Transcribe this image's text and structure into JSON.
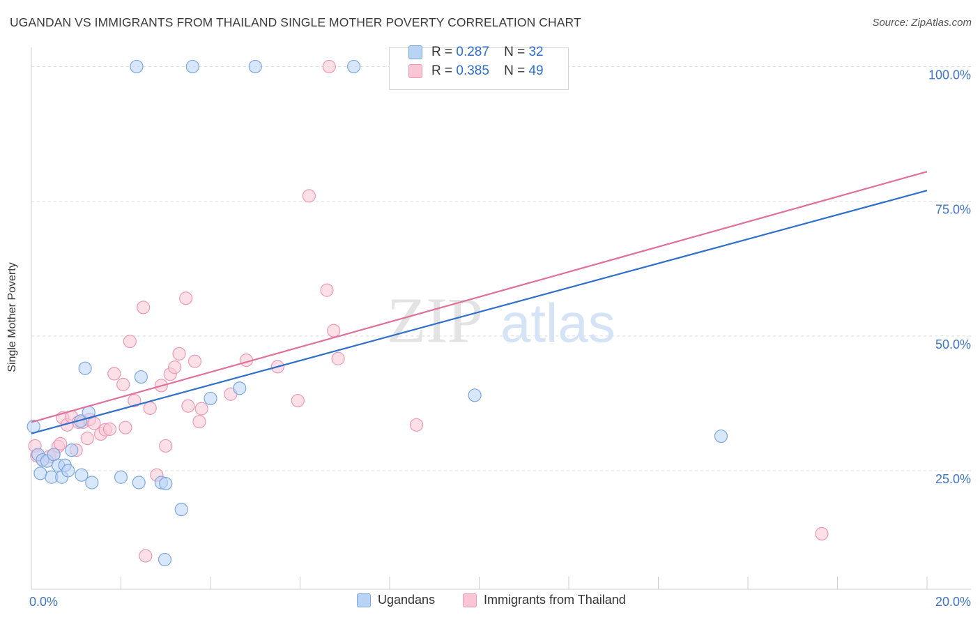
{
  "header": {
    "title": "UGANDAN VS IMMIGRANTS FROM THAILAND SINGLE MOTHER POVERTY CORRELATION CHART",
    "source": "Source: ZipAtlas.com"
  },
  "watermark": {
    "zip": "ZIP",
    "atlas": "atlas"
  },
  "legend_top": {
    "r_label": "R =",
    "n_label": "N =",
    "rows": [
      {
        "r": "0.287",
        "n": "32"
      },
      {
        "r": "0.385",
        "n": "49"
      }
    ]
  },
  "legend_bottom": {
    "items": [
      "Ugandans",
      "Immigrants from Thailand"
    ]
  },
  "colors": {
    "ugandans_fill": "#b9d3f5",
    "ugandans_stroke": "#7aa6e0",
    "ugandans_line": "#2e6fcc",
    "thailand_fill": "#f9c6d6",
    "thailand_stroke": "#ef98b4",
    "thailand_line": "#e0709a",
    "axis_text": "#3d74c6"
  },
  "chart_data": {
    "type": "scatter",
    "title": "UGANDAN VS IMMIGRANTS FROM THAILAND SINGLE MOTHER POVERTY CORRELATION CHART",
    "xlabel": "",
    "ylabel": "Single Mother Poverty",
    "xlim": [
      0,
      20
    ],
    "ylim": [
      3,
      102
    ],
    "x_tick_labels": [
      "0.0%",
      "20.0%"
    ],
    "y_ticks": [
      25,
      50,
      75,
      100
    ],
    "y_tick_labels": [
      "25.0%",
      "50.0%",
      "75.0%",
      "100.0%"
    ],
    "grid": true,
    "legend_position": "top-center",
    "series": [
      {
        "name": "Ugandans",
        "r": 0.287,
        "n": 32,
        "trend": {
          "x": [
            0,
            20
          ],
          "y": [
            31.9,
            77.0
          ]
        },
        "points": [
          [
            0.05,
            33.2
          ],
          [
            0.15,
            28.0
          ],
          [
            0.2,
            24.5
          ],
          [
            0.25,
            27.0
          ],
          [
            0.35,
            26.8
          ],
          [
            0.45,
            23.8
          ],
          [
            0.5,
            28.0
          ],
          [
            0.6,
            26.0
          ],
          [
            0.68,
            23.8
          ],
          [
            0.75,
            26.0
          ],
          [
            0.82,
            25.0
          ],
          [
            0.9,
            28.8
          ],
          [
            1.1,
            34.2
          ],
          [
            1.12,
            24.2
          ],
          [
            1.2,
            44.0
          ],
          [
            1.28,
            35.8
          ],
          [
            1.35,
            22.8
          ],
          [
            2.0,
            23.8
          ],
          [
            2.35,
            100.0
          ],
          [
            2.4,
            22.8
          ],
          [
            2.45,
            42.4
          ],
          [
            2.9,
            22.8
          ],
          [
            2.98,
            8.5
          ],
          [
            3.35,
            17.8
          ],
          [
            3.6,
            100.0
          ],
          [
            4.0,
            38.4
          ],
          [
            4.65,
            40.3
          ],
          [
            5.0,
            100.0
          ],
          [
            7.2,
            100.0
          ],
          [
            9.9,
            39.0
          ],
          [
            15.4,
            31.4
          ],
          [
            3.0,
            22.6
          ]
        ]
      },
      {
        "name": "Immigrants from Thailand",
        "r": 0.385,
        "n": 49,
        "trend": {
          "x": [
            0,
            20
          ],
          "y": [
            34.0,
            80.5
          ]
        },
        "points": [
          [
            0.08,
            29.6
          ],
          [
            0.12,
            27.8
          ],
          [
            0.25,
            27.0
          ],
          [
            0.4,
            27.6
          ],
          [
            0.5,
            28.0
          ],
          [
            0.6,
            29.5
          ],
          [
            0.65,
            30.0
          ],
          [
            0.7,
            34.8
          ],
          [
            0.8,
            33.5
          ],
          [
            0.9,
            35.0
          ],
          [
            1.0,
            28.8
          ],
          [
            1.05,
            34.0
          ],
          [
            1.15,
            34.0
          ],
          [
            1.25,
            31.0
          ],
          [
            1.3,
            34.5
          ],
          [
            1.4,
            33.8
          ],
          [
            1.55,
            31.8
          ],
          [
            1.65,
            32.6
          ],
          [
            1.75,
            32.7
          ],
          [
            1.85,
            43.0
          ],
          [
            2.1,
            33.0
          ],
          [
            2.05,
            41.0
          ],
          [
            2.2,
            49.0
          ],
          [
            2.3,
            38.0
          ],
          [
            2.55,
            9.2
          ],
          [
            2.5,
            55.3
          ],
          [
            2.65,
            36.6
          ],
          [
            2.8,
            24.2
          ],
          [
            2.9,
            40.8
          ],
          [
            3.0,
            29.6
          ],
          [
            3.1,
            42.9
          ],
          [
            3.2,
            44.2
          ],
          [
            3.3,
            46.7
          ],
          [
            3.45,
            57.0
          ],
          [
            3.5,
            37.0
          ],
          [
            3.65,
            45.3
          ],
          [
            3.75,
            34.1
          ],
          [
            3.8,
            36.5
          ],
          [
            4.45,
            39.2
          ],
          [
            4.8,
            45.5
          ],
          [
            5.5,
            44.3
          ],
          [
            5.95,
            38.0
          ],
          [
            6.2,
            76.0
          ],
          [
            6.6,
            58.5
          ],
          [
            6.75,
            51.0
          ],
          [
            6.85,
            45.8
          ],
          [
            6.65,
            100.0
          ],
          [
            8.6,
            33.5
          ],
          [
            17.65,
            13.3
          ]
        ]
      }
    ]
  }
}
